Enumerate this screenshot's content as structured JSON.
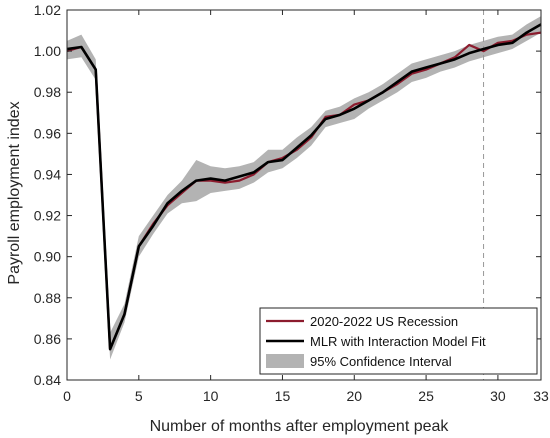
{
  "chart_data": {
    "type": "line",
    "xlabel": "Number of months after employment peak",
    "ylabel": "Payroll employment index",
    "xlim": [
      0,
      33
    ],
    "ylim": [
      0.84,
      1.02
    ],
    "xticks": [
      0,
      5,
      10,
      15,
      20,
      25,
      30,
      33
    ],
    "xtick_labels": [
      "0",
      "5",
      "10",
      "15",
      "20",
      "25",
      "30",
      "33"
    ],
    "yticks": [
      0.84,
      0.86,
      0.88,
      0.9,
      0.92,
      0.94,
      0.96,
      0.98,
      1.0,
      1.02
    ],
    "ytick_labels": [
      "0.84",
      "0.86",
      "0.88",
      "0.90",
      "0.92",
      "0.94",
      "0.96",
      "0.98",
      "1.00",
      "1.02"
    ],
    "grid": false,
    "legend_position": "bottom-right",
    "vertical_reference_line": {
      "x": 29,
      "style": "dashed",
      "color": "#999999"
    },
    "x": [
      0,
      1,
      2,
      3,
      4,
      5,
      6,
      7,
      8,
      9,
      10,
      11,
      12,
      13,
      14,
      15,
      16,
      17,
      18,
      19,
      20,
      21,
      22,
      23,
      24,
      25,
      26,
      27,
      28,
      29,
      30,
      31,
      32,
      33
    ],
    "series": [
      {
        "name": "2020-2022 US Recession",
        "color": "#8c1c2e",
        "values": [
          1.0,
          1.002,
          0.991,
          0.855,
          0.872,
          0.905,
          0.916,
          0.925,
          0.931,
          0.937,
          0.937,
          0.936,
          0.937,
          0.94,
          0.946,
          0.948,
          0.952,
          0.958,
          0.968,
          0.969,
          0.974,
          0.976,
          0.98,
          0.984,
          0.989,
          0.991,
          0.994,
          0.997,
          1.003,
          1.0,
          1.004,
          1.005,
          1.008,
          1.009
        ]
      },
      {
        "name": "MLR with Interaction Model Fit",
        "color": "#000000",
        "values": [
          1.001,
          1.002,
          0.991,
          0.855,
          0.872,
          0.905,
          0.915,
          0.926,
          0.932,
          0.937,
          0.938,
          0.937,
          0.939,
          0.941,
          0.946,
          0.947,
          0.953,
          0.959,
          0.967,
          0.969,
          0.972,
          0.976,
          0.98,
          0.985,
          0.99,
          0.992,
          0.994,
          0.996,
          0.999,
          1.001,
          1.003,
          1.004,
          1.009,
          1.013
        ]
      }
    ],
    "confidence_band": {
      "name": "95% Confidence Interval",
      "color": "#b3b3b3",
      "lower": [
        0.996,
        0.997,
        0.986,
        0.85,
        0.868,
        0.9,
        0.911,
        0.921,
        0.926,
        0.927,
        0.931,
        0.932,
        0.933,
        0.936,
        0.941,
        0.943,
        0.948,
        0.954,
        0.963,
        0.965,
        0.967,
        0.972,
        0.976,
        0.98,
        0.985,
        0.987,
        0.99,
        0.992,
        0.995,
        0.997,
        0.999,
        1.001,
        1.005,
        1.009
      ],
      "upper": [
        1.005,
        1.008,
        0.996,
        0.863,
        0.877,
        0.91,
        0.92,
        0.93,
        0.937,
        0.947,
        0.944,
        0.943,
        0.944,
        0.946,
        0.952,
        0.952,
        0.958,
        0.963,
        0.971,
        0.973,
        0.977,
        0.98,
        0.984,
        0.989,
        0.994,
        0.996,
        0.998,
        1.0,
        1.003,
        1.005,
        1.007,
        1.008,
        1.013,
        1.017
      ]
    }
  }
}
